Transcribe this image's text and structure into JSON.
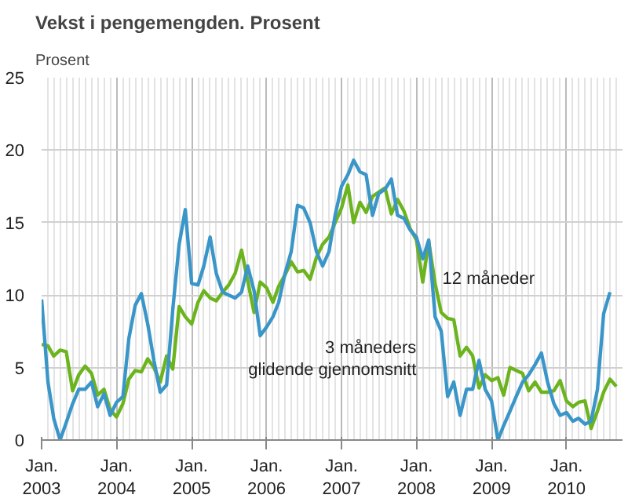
{
  "chart_data": {
    "type": "line",
    "title": "Vekst i pengemengden. Prosent",
    "ylabel": "Prosent",
    "x": [
      "2003-01",
      "2003-02",
      "2003-03",
      "2003-04",
      "2003-05",
      "2003-06",
      "2003-07",
      "2003-08",
      "2003-09",
      "2003-10",
      "2003-11",
      "2003-12",
      "2004-01",
      "2004-02",
      "2004-03",
      "2004-04",
      "2004-05",
      "2004-06",
      "2004-07",
      "2004-08",
      "2004-09",
      "2004-10",
      "2004-11",
      "2004-12",
      "2005-01",
      "2005-02",
      "2005-03",
      "2005-04",
      "2005-05",
      "2005-06",
      "2005-07",
      "2005-08",
      "2005-09",
      "2005-10",
      "2005-11",
      "2005-12",
      "2006-01",
      "2006-02",
      "2006-03",
      "2006-04",
      "2006-05",
      "2006-06",
      "2006-07",
      "2006-08",
      "2006-09",
      "2006-10",
      "2006-11",
      "2006-12",
      "2007-01",
      "2007-02",
      "2007-03",
      "2007-04",
      "2007-05",
      "2007-06",
      "2007-07",
      "2007-08",
      "2007-09",
      "2007-10",
      "2007-11",
      "2007-12",
      "2008-01",
      "2008-02",
      "2008-03",
      "2008-04",
      "2008-05",
      "2008-06",
      "2008-07",
      "2008-08",
      "2008-09",
      "2008-10",
      "2008-11",
      "2008-12",
      "2009-01",
      "2009-02",
      "2009-03",
      "2009-04",
      "2009-05",
      "2009-06",
      "2009-07",
      "2009-08",
      "2009-09",
      "2009-10",
      "2009-11",
      "2009-12",
      "2010-01",
      "2010-02",
      "2010-03",
      "2010-04",
      "2010-05",
      "2010-06",
      "2010-07",
      "2010-08",
      "2010-09"
    ],
    "series": [
      {
        "name": "12 måneder",
        "color": "#6cb41e",
        "values": [
          6.6,
          6.5,
          5.8,
          6.2,
          6.1,
          3.4,
          4.5,
          5.1,
          4.6,
          3.1,
          3.5,
          2.1,
          1.6,
          2.5,
          4.2,
          4.8,
          4.7,
          5.6,
          5.0,
          4.0,
          5.8,
          4.9,
          9.2,
          8.5,
          8.0,
          9.5,
          10.3,
          9.8,
          9.6,
          10.2,
          10.7,
          11.5,
          13.1,
          11.0,
          8.8,
          10.9,
          10.5,
          9.5,
          10.6,
          11.4,
          12.3,
          11.6,
          11.7,
          11.1,
          12.6,
          13.5,
          14.0,
          15.0,
          16.0,
          17.6,
          15.0,
          16.4,
          15.7,
          16.8,
          17.1,
          17.4,
          15.6,
          16.6,
          15.8,
          14.6,
          13.8,
          10.9,
          13.7,
          10.8,
          8.8,
          8.4,
          8.3,
          5.8,
          6.4,
          5.8,
          3.6,
          4.5,
          4.1,
          4.3,
          3.1,
          5.0,
          4.8,
          4.6,
          3.4,
          4.0,
          3.3,
          3.3,
          3.4,
          4.1,
          2.7,
          2.3,
          2.6,
          2.7,
          0.8,
          2.0,
          3.3,
          4.2,
          3.7
        ]
      },
      {
        "name": "3 måneders\nglidende gjennomsnitt",
        "color": "#3a96c8",
        "values": [
          9.7,
          4.0,
          1.5,
          0.0,
          1.2,
          2.5,
          3.5,
          3.5,
          4.0,
          2.3,
          3.2,
          1.7,
          2.6,
          3.0,
          7.0,
          9.3,
          10.1,
          8.0,
          5.5,
          3.3,
          3.8,
          9.0,
          13.5,
          15.9,
          10.8,
          10.7,
          12.0,
          14.0,
          11.5,
          10.2,
          10.0,
          9.8,
          10.2,
          12.0,
          10.3,
          7.2,
          7.8,
          8.5,
          9.5,
          11.5,
          13.0,
          16.2,
          16.0,
          15.0,
          13.0,
          12.0,
          13.0,
          15.5,
          17.5,
          18.3,
          19.3,
          18.5,
          18.3,
          15.5,
          17.0,
          17.3,
          18.0,
          15.5,
          15.3,
          14.5,
          14.0,
          12.5,
          13.8,
          8.5,
          7.5,
          3.0,
          4.0,
          1.7,
          3.5,
          3.5,
          5.5,
          3.5,
          2.7,
          0.0,
          1.0,
          2.0,
          3.0,
          4.0,
          4.5,
          5.2,
          6.0,
          4.0,
          2.5,
          1.7,
          1.9,
          1.3,
          1.5,
          1.1,
          1.3,
          3.5,
          8.7,
          10.2,
          null
        ]
      }
    ],
    "xlim": [
      "2003-01",
      "2010-10"
    ],
    "xticks": [
      {
        "value": "2003-01",
        "label": "Jan.\n2003"
      },
      {
        "value": "2004-01",
        "label": "Jan.\n2004"
      },
      {
        "value": "2005-01",
        "label": "Jan.\n2005"
      },
      {
        "value": "2006-01",
        "label": "Jan.\n2006"
      },
      {
        "value": "2007-01",
        "label": "Jan.\n2007"
      },
      {
        "value": "2008-01",
        "label": "Jan.\n2008"
      },
      {
        "value": "2009-01",
        "label": "Jan.\n2009"
      },
      {
        "value": "2010-01",
        "label": "Jan.\n2010"
      }
    ],
    "ylim": [
      0,
      25
    ],
    "yticks": [
      0,
      5,
      10,
      15,
      20,
      25
    ],
    "grid": true,
    "legend": false,
    "line_style": "solid",
    "marker": "none"
  }
}
